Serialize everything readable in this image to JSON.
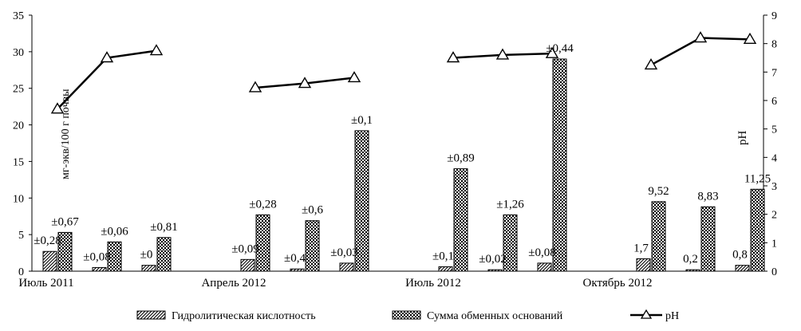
{
  "chart_data": {
    "type": "bar",
    "title": "",
    "y_left": {
      "label": "мг-экв/100 г почвы",
      "lim": [
        0,
        35
      ],
      "ticks": [
        "0",
        "5",
        "10",
        "15",
        "20",
        "25",
        "30",
        "35"
      ]
    },
    "y_right": {
      "label": "pH",
      "lim": [
        0,
        9
      ],
      "ticks": [
        "0",
        "1",
        "2",
        "3",
        "4",
        "5",
        "6",
        "7",
        "8",
        "9"
      ]
    },
    "x_labels": [
      "Июль 2011",
      "Апрель 2012",
      "Июль 2012",
      "Октябрь 2012"
    ],
    "groups": [
      {
        "period": "Июль 2011",
        "points": [
          {
            "hydro": 2.7,
            "hydro_label": "±0,28",
            "sum": 5.3,
            "sum_label": "±0,67",
            "ph": 5.7
          },
          {
            "hydro": 0.5,
            "hydro_label": "±0,08",
            "sum": 4.0,
            "sum_label": "±0,06",
            "ph": 7.5
          },
          {
            "hydro": 0.8,
            "hydro_label": "±0",
            "sum": 4.6,
            "sum_label": "±0,81",
            "ph": 7.75
          }
        ]
      },
      {
        "period": "Апрель 2012",
        "points": [
          {
            "hydro": 1.6,
            "hydro_label": "±0,09",
            "sum": 7.7,
            "sum_label": "±0,28",
            "ph": 6.45
          },
          {
            "hydro": 0.3,
            "hydro_label": "±0,4",
            "sum": 6.9,
            "sum_label": "±0,6",
            "ph": 6.6
          },
          {
            "hydro": 1.1,
            "hydro_label": "±0,03",
            "sum": 19.2,
            "sum_label": "±0,1",
            "ph": 6.8
          }
        ]
      },
      {
        "period": "Июль 2012",
        "points": [
          {
            "hydro": 0.6,
            "hydro_label": "±0,1",
            "sum": 14.0,
            "sum_label": "±0,89",
            "ph": 7.5
          },
          {
            "hydro": 0.2,
            "hydro_label": "±0,02",
            "sum": 7.7,
            "sum_label": "±1,26",
            "ph": 7.6
          },
          {
            "hydro": 1.1,
            "hydro_label": "±0,08",
            "sum": 29.0,
            "sum_label": "±0,44",
            "ph": 7.65
          }
        ]
      },
      {
        "period": "Октябрь 2012",
        "points": [
          {
            "hydro": 1.7,
            "hydro_label": "1,7",
            "sum": 9.5,
            "sum_label": "9,52",
            "ph": 7.25
          },
          {
            "hydro": 0.2,
            "hydro_label": "0,2",
            "sum": 8.8,
            "sum_label": "8,83",
            "ph": 8.2
          },
          {
            "hydro": 0.8,
            "hydro_label": "0,8",
            "sum": 11.2,
            "sum_label": "11,25",
            "ph": 8.15
          }
        ]
      }
    ],
    "legend": {
      "placement": "bottom",
      "items": [
        {
          "key": "hydro",
          "label": "Гидролитическая кислотность",
          "symbol": "hatched-bar"
        },
        {
          "key": "sum",
          "label": "Сумма обменных оснований",
          "symbol": "checkered-bar"
        },
        {
          "key": "ph",
          "label": "pH",
          "symbol": "line-triangle"
        }
      ]
    },
    "grid": false,
    "colors": {
      "bars": "#000000",
      "line": "#000000",
      "background": "#ffffff"
    }
  }
}
